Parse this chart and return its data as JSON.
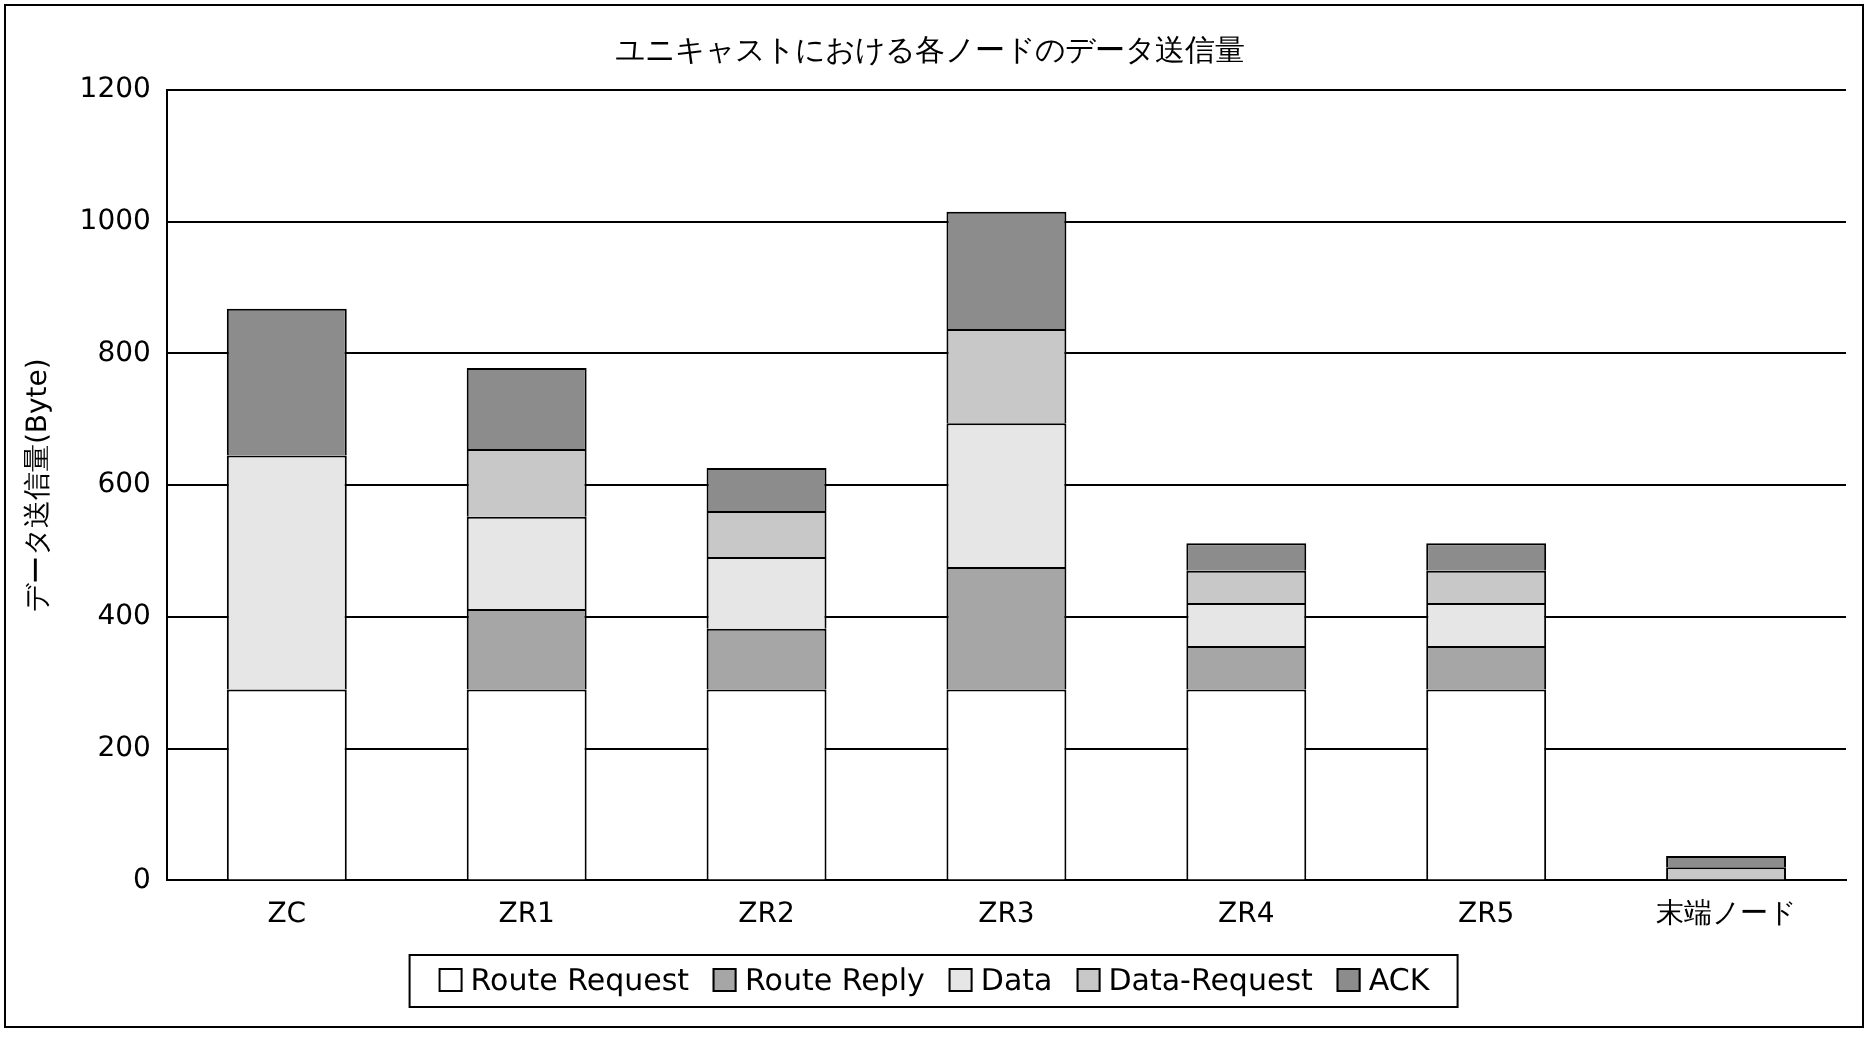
{
  "chart_data": {
    "type": "bar",
    "title": "ユニキャストにおける各ノードのデータ送信量",
    "ylabel": "データ送信量(Byte)",
    "categories": [
      "ZC",
      "ZR1",
      "ZR2",
      "ZR3",
      "ZR4",
      "ZR5",
      "末端ノード"
    ],
    "stacked": true,
    "series": [
      {
        "name": "Route Request",
        "color": "#ffffff",
        "values": [
          290,
          290,
          290,
          290,
          290,
          290,
          0
        ]
      },
      {
        "name": "Route Reply",
        "color": "#a6a6a6",
        "values": [
          0,
          122,
          92,
          186,
          66,
          66,
          0
        ]
      },
      {
        "name": "Data",
        "color": "#e6e6e6",
        "values": [
          355,
          140,
          109,
          218,
          65,
          65,
          0
        ]
      },
      {
        "name": "Data-Request",
        "color": "#c8c8c8",
        "values": [
          0,
          103,
          70,
          143,
          49,
          49,
          20
        ]
      },
      {
        "name": "ACK",
        "color": "#8c8c8c",
        "values": [
          223,
          123,
          65,
          178,
          42,
          42,
          17
        ]
      }
    ],
    "ylim": [
      0,
      1200
    ],
    "yticks": [
      0,
      200,
      400,
      600,
      800,
      1000,
      1200
    ],
    "grid": "y",
    "legend": "bottom"
  }
}
